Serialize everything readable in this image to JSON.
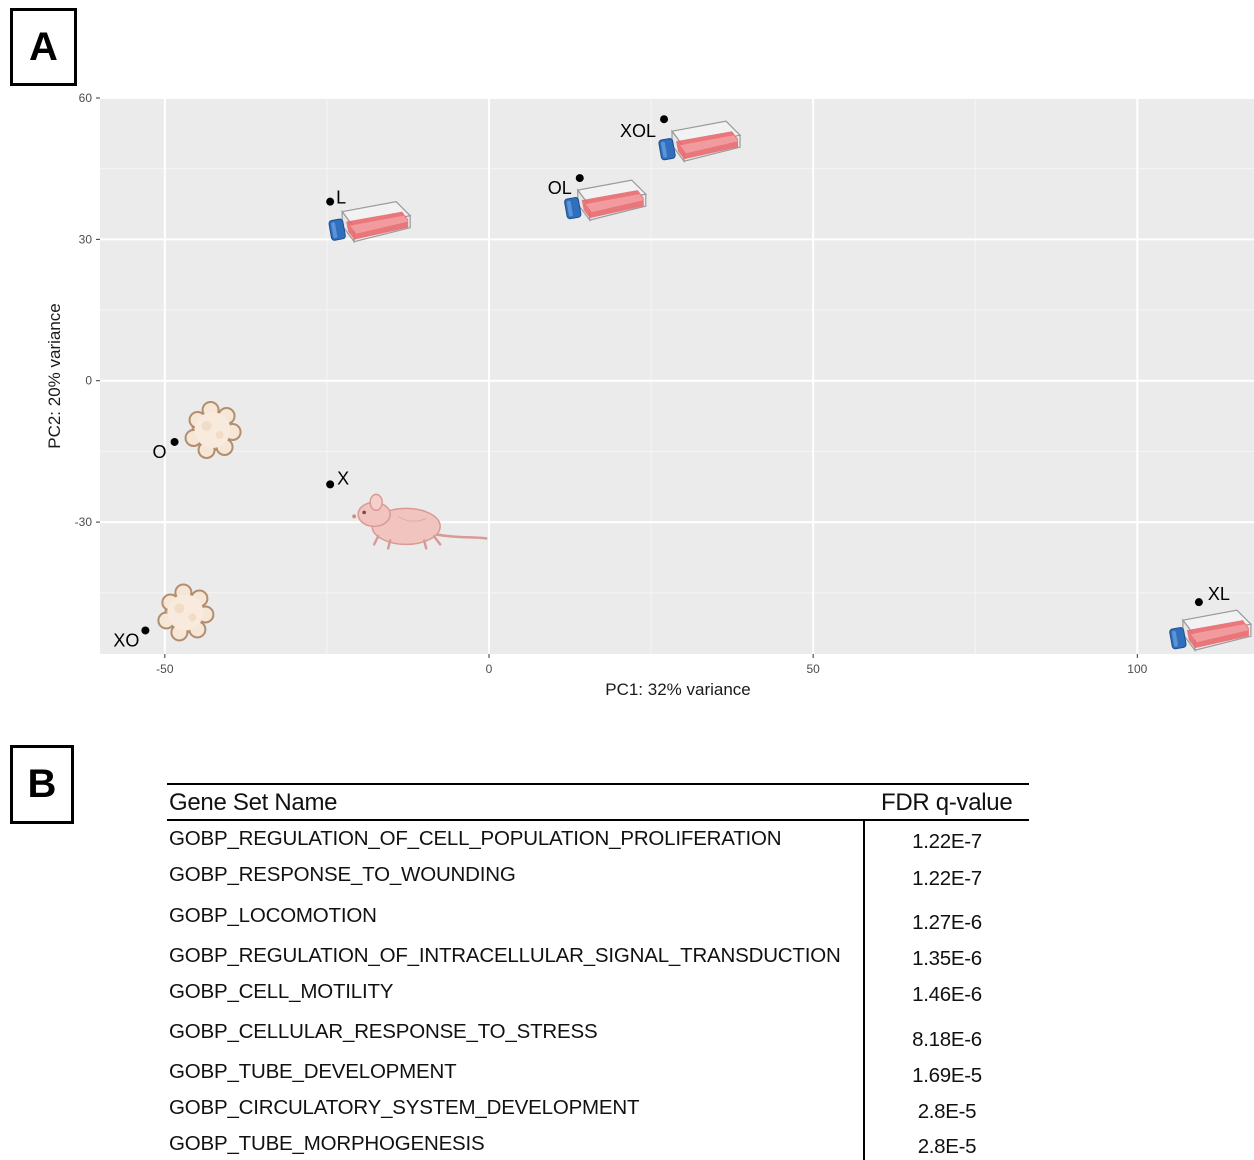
{
  "panels": {
    "a": "A",
    "b": "B"
  },
  "chart_data": {
    "type": "scatter",
    "xlabel": "PC1: 32% variance",
    "ylabel": "PC2: 20% variance",
    "xlim": [
      -60,
      118
    ],
    "ylim": [
      -58,
      60
    ],
    "x_ticks": [
      -50,
      0,
      50,
      100
    ],
    "y_ticks": [
      60,
      30,
      0,
      -30
    ],
    "grid": true,
    "points": [
      {
        "label": "XOL",
        "x": 27,
        "y": 55.5,
        "icon": "flask-icon"
      },
      {
        "label": "OL",
        "x": 14,
        "y": 43,
        "icon": "flask-icon"
      },
      {
        "label": "L",
        "x": -24.5,
        "y": 38,
        "icon": "flask-icon"
      },
      {
        "label": "O",
        "x": -48.5,
        "y": -13,
        "icon": "organoid-icon"
      },
      {
        "label": "X",
        "x": -24.5,
        "y": -22,
        "icon": "mouse-icon"
      },
      {
        "label": "XO",
        "x": -53,
        "y": -53,
        "icon": "organoid-icon"
      },
      {
        "label": "XL",
        "x": 109.5,
        "y": -47,
        "icon": "flask-icon"
      }
    ]
  },
  "table": {
    "headers": [
      "Gene Set Name",
      "FDR q-value"
    ],
    "rows": [
      {
        "name": "GOBP_REGULATION_OF_CELL_POPULATION_PROLIFERATION",
        "q": "1.22E-7"
      },
      {
        "name": "GOBP_RESPONSE_TO_WOUNDING",
        "q": "1.22E-7"
      },
      {
        "name": "GOBP_LOCOMOTION",
        "q": "1.27E-6"
      },
      {
        "name": "GOBP_REGULATION_OF_INTRACELLULAR_SIGNAL_TRANSDUCTION",
        "q": "1.35E-6"
      },
      {
        "name": "GOBP_CELL_MOTILITY",
        "q": "1.46E-6"
      },
      {
        "name": "GOBP_CELLULAR_RESPONSE_TO_STRESS",
        "q": "8.18E-6"
      },
      {
        "name": "GOBP_TUBE_DEVELOPMENT",
        "q": "1.69E-5"
      },
      {
        "name": "GOBP_CIRCULATORY_SYSTEM_DEVELOPMENT",
        "q": "2.8E-5"
      },
      {
        "name": "GOBP_TUBE_MORPHOGENESIS",
        "q": "2.8E-5"
      }
    ]
  }
}
